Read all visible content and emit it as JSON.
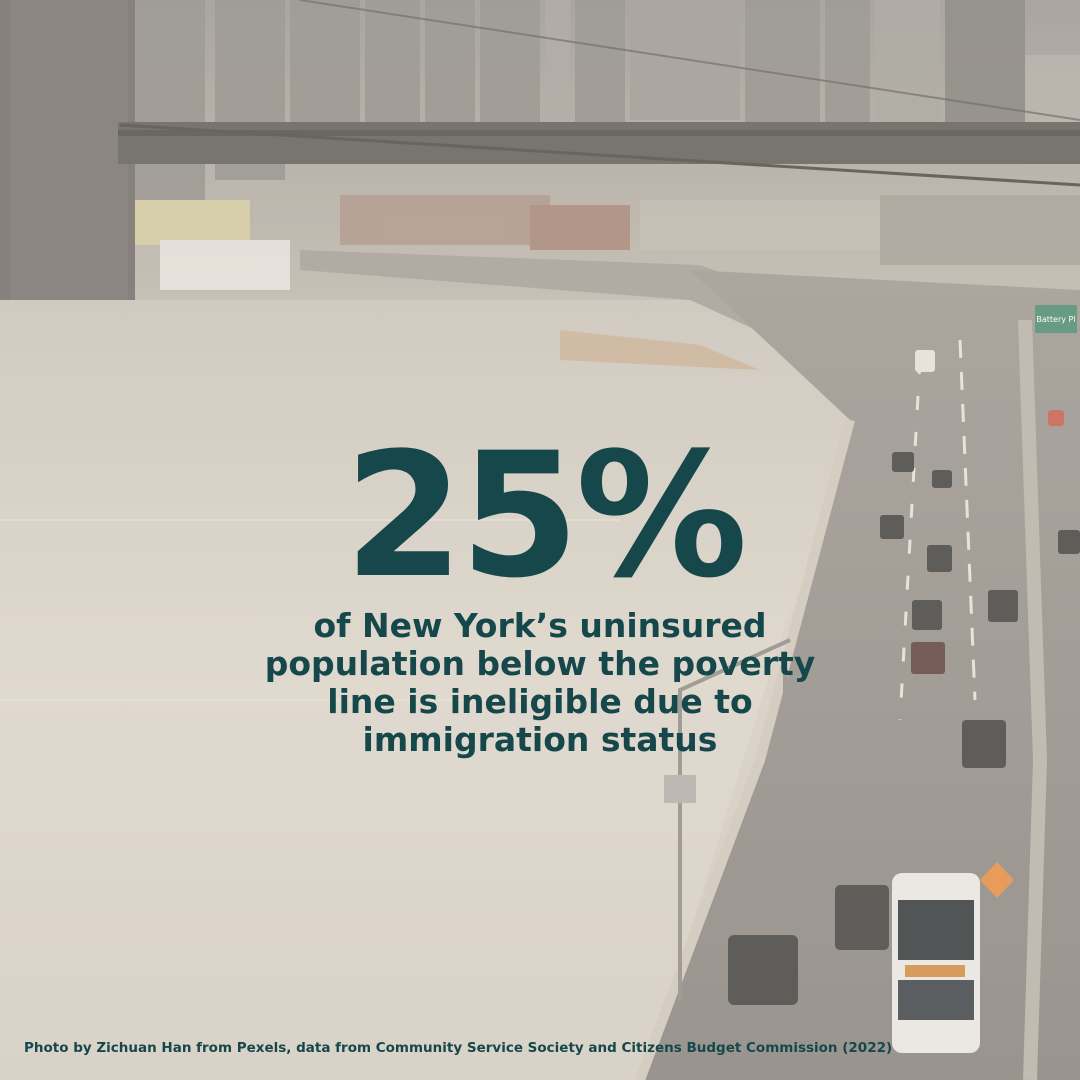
{
  "background": {
    "icon": "city-river-highway-photo",
    "sign_text": "Battery Pl"
  },
  "headline": {
    "stat": "25%",
    "caption": "of New York’s uninsured\npopulation below the poverty\nline is ineligible due to\nimmigration status"
  },
  "footer": {
    "credit": "Photo by Zichuan Han from Pexels, data from Community Service Society and Citizens Budget Commission (2022)"
  },
  "colors": {
    "text": "#15474b",
    "water": "#d9d2c6",
    "road": "#8f8a84"
  }
}
